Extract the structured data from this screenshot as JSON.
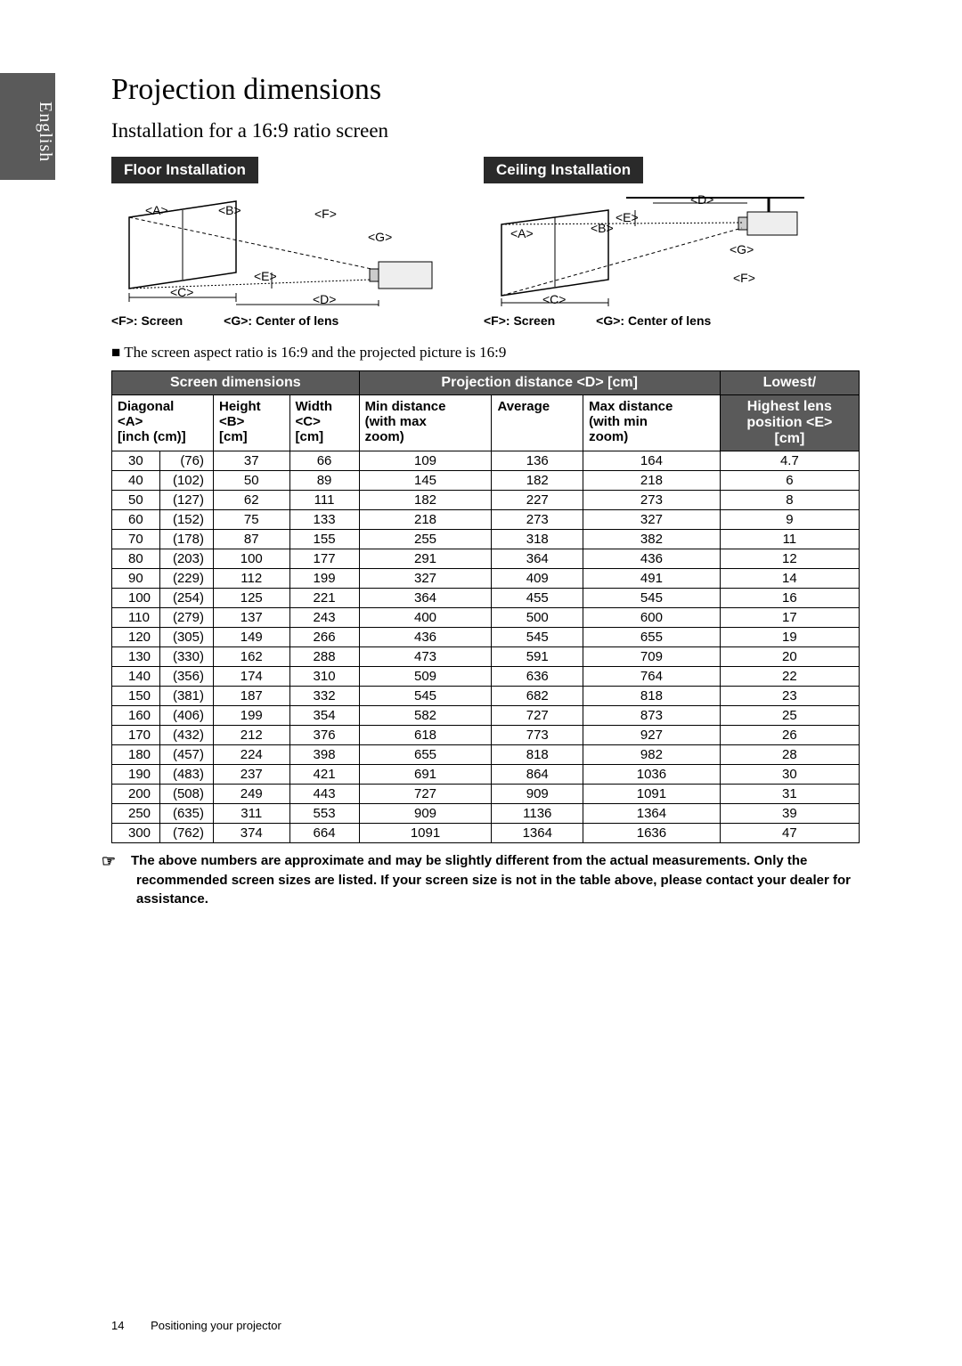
{
  "sidebar_lang": "English",
  "title": "Projection dimensions",
  "subtitle": "Installation for a 16:9 ratio screen",
  "floor_label": "Floor Installation",
  "ceiling_label": "Ceiling Installation",
  "legend_f": "<F>: Screen",
  "legend_g": "<G>: Center of lens",
  "aspect_note": "The screen aspect ratio is 16:9 and the projected picture is 16:9",
  "headers": {
    "screen_dim": "Screen dimensions",
    "proj_dist": "Projection distance <D> [cm]",
    "lens_low": "Lowest/",
    "diagonal": "Diagonal <A> [inch (cm)]",
    "height": "Height <B> [cm]",
    "width": "Width <C> [cm]",
    "min_d": "Min distance (with max zoom)",
    "avg": "Average",
    "max_d": "Max distance (with min zoom)",
    "lens_pos": "Highest lens position <E> [cm]"
  },
  "labels": {
    "A": "<A>",
    "B": "<B>",
    "C": "<C>",
    "D": "<D>",
    "E": "<E>",
    "F": "<F>",
    "G": "<G>"
  },
  "rows": [
    {
      "inch": "30",
      "cm": "(76)",
      "h": "37",
      "w": "66",
      "min": "109",
      "avg": "136",
      "max": "164",
      "e": "4.7"
    },
    {
      "inch": "40",
      "cm": "(102)",
      "h": "50",
      "w": "89",
      "min": "145",
      "avg": "182",
      "max": "218",
      "e": "6"
    },
    {
      "inch": "50",
      "cm": "(127)",
      "h": "62",
      "w": "111",
      "min": "182",
      "avg": "227",
      "max": "273",
      "e": "8"
    },
    {
      "inch": "60",
      "cm": "(152)",
      "h": "75",
      "w": "133",
      "min": "218",
      "avg": "273",
      "max": "327",
      "e": "9"
    },
    {
      "inch": "70",
      "cm": "(178)",
      "h": "87",
      "w": "155",
      "min": "255",
      "avg": "318",
      "max": "382",
      "e": "11"
    },
    {
      "inch": "80",
      "cm": "(203)",
      "h": "100",
      "w": "177",
      "min": "291",
      "avg": "364",
      "max": "436",
      "e": "12"
    },
    {
      "inch": "90",
      "cm": "(229)",
      "h": "112",
      "w": "199",
      "min": "327",
      "avg": "409",
      "max": "491",
      "e": "14"
    },
    {
      "inch": "100",
      "cm": "(254)",
      "h": "125",
      "w": "221",
      "min": "364",
      "avg": "455",
      "max": "545",
      "e": "16"
    },
    {
      "inch": "110",
      "cm": "(279)",
      "h": "137",
      "w": "243",
      "min": "400",
      "avg": "500",
      "max": "600",
      "e": "17"
    },
    {
      "inch": "120",
      "cm": "(305)",
      "h": "149",
      "w": "266",
      "min": "436",
      "avg": "545",
      "max": "655",
      "e": "19"
    },
    {
      "inch": "130",
      "cm": "(330)",
      "h": "162",
      "w": "288",
      "min": "473",
      "avg": "591",
      "max": "709",
      "e": "20"
    },
    {
      "inch": "140",
      "cm": "(356)",
      "h": "174",
      "w": "310",
      "min": "509",
      "avg": "636",
      "max": "764",
      "e": "22"
    },
    {
      "inch": "150",
      "cm": "(381)",
      "h": "187",
      "w": "332",
      "min": "545",
      "avg": "682",
      "max": "818",
      "e": "23"
    },
    {
      "inch": "160",
      "cm": "(406)",
      "h": "199",
      "w": "354",
      "min": "582",
      "avg": "727",
      "max": "873",
      "e": "25"
    },
    {
      "inch": "170",
      "cm": "(432)",
      "h": "212",
      "w": "376",
      "min": "618",
      "avg": "773",
      "max": "927",
      "e": "26"
    },
    {
      "inch": "180",
      "cm": "(457)",
      "h": "224",
      "w": "398",
      "min": "655",
      "avg": "818",
      "max": "982",
      "e": "28"
    },
    {
      "inch": "190",
      "cm": "(483)",
      "h": "237",
      "w": "421",
      "min": "691",
      "avg": "864",
      "max": "1036",
      "e": "30"
    },
    {
      "inch": "200",
      "cm": "(508)",
      "h": "249",
      "w": "443",
      "min": "727",
      "avg": "909",
      "max": "1091",
      "e": "31"
    },
    {
      "inch": "250",
      "cm": "(635)",
      "h": "311",
      "w": "553",
      "min": "909",
      "avg": "1136",
      "max": "1364",
      "e": "39"
    },
    {
      "inch": "300",
      "cm": "(762)",
      "h": "374",
      "w": "664",
      "min": "1091",
      "avg": "1364",
      "max": "1636",
      "e": "47"
    }
  ],
  "footnote": "The above numbers are approximate and may be slightly different from the actual measurements. Only the recommended screen sizes are listed. If your screen size is not in the table above, please contact your dealer for assistance.",
  "footer": {
    "page_num": "14",
    "section": "Positioning your projector"
  },
  "colors": {
    "tab_bg": "#5a5a5a",
    "head_bg": "#5a5a5a",
    "border": "#000000",
    "text": "#000000",
    "bg": "#ffffff"
  }
}
